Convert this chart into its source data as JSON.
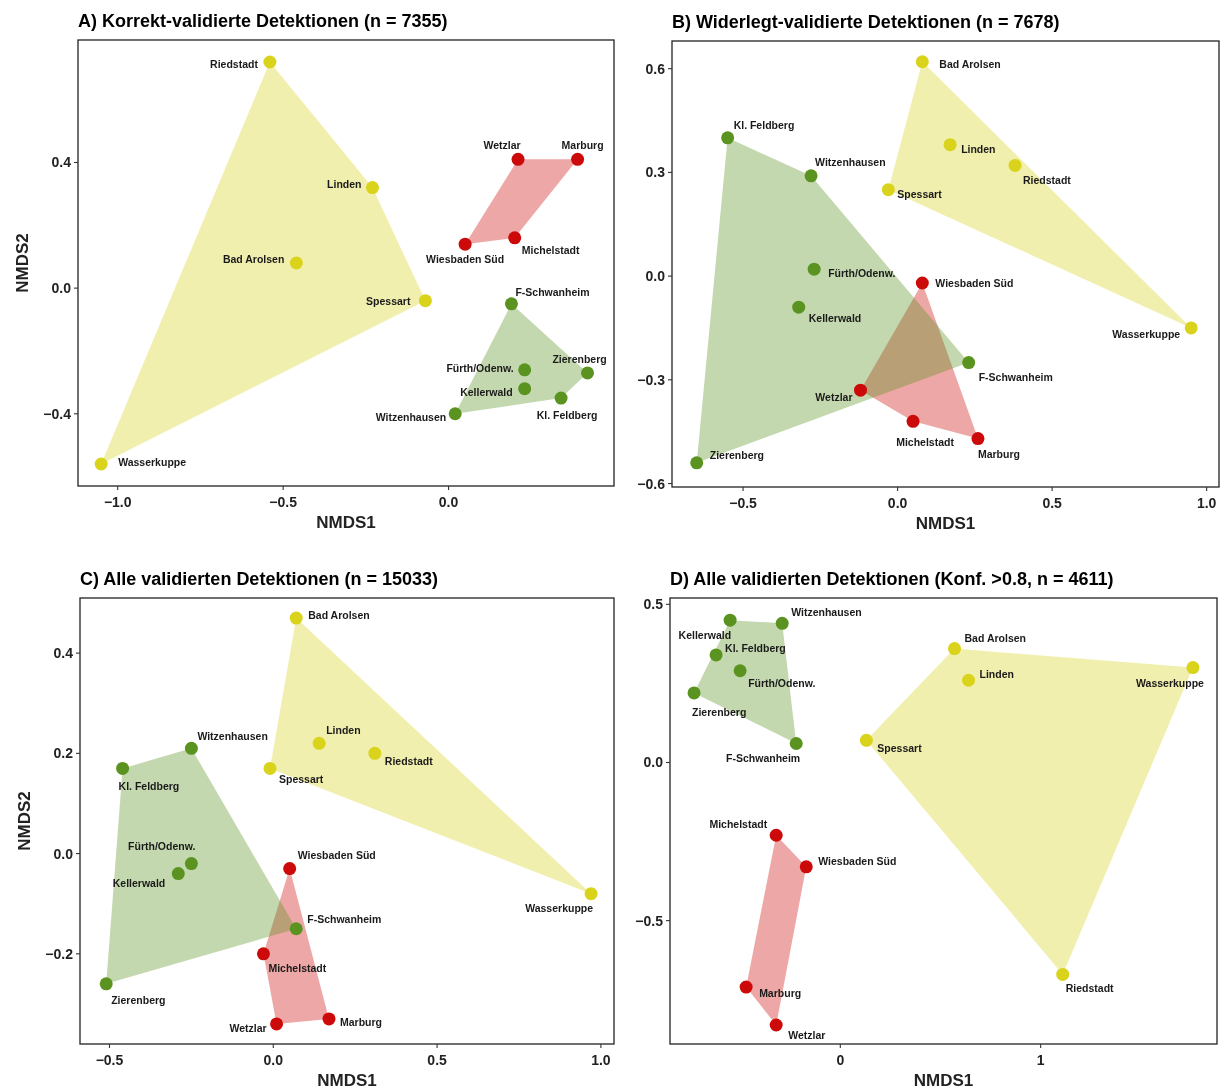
{
  "chart_data": [
    {
      "type": "scatter",
      "title": "A) Korrekt-validierte Detektionen (n = 7355)",
      "xlabel": "NMDS1",
      "ylabel": "NMDS2",
      "marker": "circle",
      "xlim": [
        -1.12,
        0.5
      ],
      "ylim": [
        -0.63,
        0.79
      ],
      "xticks": [
        {
          "value": -1.0,
          "label": "−1.0"
        },
        {
          "value": -0.5,
          "label": "−0.5"
        },
        {
          "value": 0,
          "label": "0.0"
        }
      ],
      "yticks": [
        {
          "value": -0.4,
          "label": "−0.4"
        },
        {
          "value": 0,
          "label": "0.0"
        },
        0.4
      ],
      "series": [
        {
          "type": "scatter",
          "color": "#d9d31c",
          "x": [
            -0.54,
            -0.23,
            -0.46,
            -0.07,
            -1.05
          ],
          "values": [
            0.72,
            0.32,
            0.08,
            -0.04,
            -0.56
          ]
        },
        {
          "type": "scatter",
          "color": "#cc0a0a",
          "x": [
            0.21,
            0.39,
            0.05,
            0.2
          ],
          "values": [
            0.41,
            0.41,
            0.14,
            0.16
          ]
        },
        {
          "type": "scatter",
          "color": "#5b9320",
          "x": [
            0.19,
            0.42,
            0.23,
            0.23,
            0.34,
            0.02
          ],
          "values": [
            -0.05,
            -0.27,
            -0.26,
            -0.32,
            -0.35,
            -0.4
          ]
        }
      ],
      "annotations": [
        {
          "text": "Riedstadt",
          "x": -0.54,
          "y": 0.72
        },
        {
          "text": "Linden",
          "x": -0.23,
          "y": 0.32
        },
        {
          "text": "Bad Arolsen",
          "x": -0.46,
          "y": 0.08
        },
        {
          "text": "Spessart",
          "x": -0.07,
          "y": -0.04
        },
        {
          "text": "Wasserkuppe",
          "x": -1.05,
          "y": -0.56
        },
        {
          "text": "Wetzlar",
          "x": 0.21,
          "y": 0.41
        },
        {
          "text": "Marburg",
          "x": 0.39,
          "y": 0.41
        },
        {
          "text": "Wiesbaden Süd",
          "x": 0.05,
          "y": 0.14
        },
        {
          "text": "Michelstadt",
          "x": 0.2,
          "y": 0.16
        },
        {
          "text": "F-Schwanheim",
          "x": 0.19,
          "y": -0.05
        },
        {
          "text": "Zierenberg",
          "x": 0.42,
          "y": -0.27
        },
        {
          "text": "Fürth/Odenw.",
          "x": 0.23,
          "y": -0.26
        },
        {
          "text": "Kellerwald",
          "x": 0.23,
          "y": -0.32
        },
        {
          "text": "Kl. Feldberg",
          "x": 0.34,
          "y": -0.35
        },
        {
          "text": "Witzenhausen",
          "x": 0.02,
          "y": -0.4
        }
      ]
    },
    {
      "type": "scatter",
      "title": "B) Widerlegt-validierte Detektionen (n = 7678)",
      "xlabel": "NMDS1",
      "marker": "circle",
      "xlim": [
        -0.73,
        1.04
      ],
      "ylim": [
        -0.61,
        0.68
      ],
      "xticks": [
        {
          "value": -0.5,
          "label": "−0.5"
        },
        {
          "value": 0,
          "label": "0.0"
        },
        0.5,
        {
          "value": 1.0,
          "label": "1.0"
        }
      ],
      "yticks": [
        {
          "value": -0.6,
          "label": "−0.6"
        },
        {
          "value": -0.3,
          "label": "−0.3"
        },
        {
          "value": 0,
          "label": "0.0"
        },
        0.3,
        0.6
      ],
      "series": [
        {
          "type": "scatter",
          "color": "#d9d31c",
          "x": [
            0.08,
            0.17,
            0.38,
            -0.03,
            0.95
          ],
          "values": [
            0.62,
            0.38,
            0.32,
            0.25,
            -0.15
          ]
        },
        {
          "type": "scatter",
          "color": "#cc0a0a",
          "x": [
            0.08,
            -0.12,
            0.05,
            0.26
          ],
          "values": [
            -0.02,
            -0.33,
            -0.42,
            -0.47
          ]
        },
        {
          "type": "scatter",
          "color": "#5b9320",
          "x": [
            -0.55,
            -0.28,
            -0.27,
            -0.32,
            0.23,
            -0.65
          ],
          "values": [
            0.4,
            0.29,
            0.02,
            -0.09,
            -0.25,
            -0.54
          ]
        }
      ],
      "annotations": [
        {
          "text": "Bad Arolsen",
          "x": 0.08,
          "y": 0.62
        },
        {
          "text": "Linden",
          "x": 0.17,
          "y": 0.38
        },
        {
          "text": "Riedstadt",
          "x": 0.38,
          "y": 0.32
        },
        {
          "text": "Spessart",
          "x": -0.03,
          "y": 0.25
        },
        {
          "text": "Wasserkuppe",
          "x": 0.95,
          "y": -0.15
        },
        {
          "text": "Wiesbaden Süd",
          "x": 0.08,
          "y": -0.02
        },
        {
          "text": "Wetzlar",
          "x": -0.12,
          "y": -0.33
        },
        {
          "text": "Michelstadt",
          "x": 0.05,
          "y": -0.42
        },
        {
          "text": "Marburg",
          "x": 0.26,
          "y": -0.47
        },
        {
          "text": "Kl. Feldberg",
          "x": -0.55,
          "y": 0.4
        },
        {
          "text": "Witzenhausen",
          "x": -0.28,
          "y": 0.29
        },
        {
          "text": "Fürth/Odenw.",
          "x": -0.27,
          "y": 0.02
        },
        {
          "text": "Kellerwald",
          "x": -0.32,
          "y": -0.09
        },
        {
          "text": "F-Schwanheim",
          "x": 0.23,
          "y": -0.25
        },
        {
          "text": "Zierenberg",
          "x": -0.65,
          "y": -0.54
        }
      ]
    },
    {
      "type": "scatter",
      "title": "C) Alle validierten Detektionen (n = 15033)",
      "xlabel": "NMDS1",
      "ylabel": "NMDS2",
      "marker": "circle",
      "xlim": [
        -0.59,
        1.04
      ],
      "ylim": [
        -0.38,
        0.51
      ],
      "xticks": [
        {
          "value": -0.5,
          "label": "−0.5"
        },
        {
          "value": 0,
          "label": "0.0"
        },
        0.5,
        {
          "value": 1.0,
          "label": "1.0"
        }
      ],
      "yticks": [
        {
          "value": -0.2,
          "label": "−0.2"
        },
        {
          "value": 0,
          "label": "0.0"
        },
        0.2,
        0.4
      ],
      "series": [
        {
          "type": "scatter",
          "color": "#d9d31c",
          "x": [
            0.07,
            0.14,
            0.31,
            -0.01,
            0.97
          ],
          "values": [
            0.47,
            0.22,
            0.2,
            0.17,
            -0.08
          ]
        },
        {
          "type": "scatter",
          "color": "#cc0a0a",
          "x": [
            0.05,
            -0.03,
            0.01,
            0.17
          ],
          "values": [
            -0.03,
            -0.2,
            -0.34,
            -0.33
          ]
        },
        {
          "type": "scatter",
          "color": "#5b9320",
          "x": [
            -0.25,
            -0.46,
            -0.25,
            -0.29,
            0.07,
            -0.51
          ],
          "values": [
            0.21,
            0.17,
            -0.02,
            -0.04,
            -0.15,
            -0.26
          ]
        }
      ],
      "annotations": [
        {
          "text": "Bad Arolsen",
          "x": 0.07,
          "y": 0.47
        },
        {
          "text": "Linden",
          "x": 0.14,
          "y": 0.22
        },
        {
          "text": "Riedstadt",
          "x": 0.31,
          "y": 0.2
        },
        {
          "text": "Spessart",
          "x": -0.01,
          "y": 0.17
        },
        {
          "text": "Wasserkuppe",
          "x": 0.97,
          "y": -0.08
        },
        {
          "text": "Wiesbaden Süd",
          "x": 0.05,
          "y": -0.03
        },
        {
          "text": "Michelstadt",
          "x": -0.03,
          "y": -0.2
        },
        {
          "text": "Wetzlar",
          "x": 0.01,
          "y": -0.34
        },
        {
          "text": "Marburg",
          "x": 0.17,
          "y": -0.33
        },
        {
          "text": "Witzenhausen",
          "x": -0.25,
          "y": 0.21
        },
        {
          "text": "Kl. Feldberg",
          "x": -0.46,
          "y": 0.17
        },
        {
          "text": "Fürth/Odenw.",
          "x": -0.25,
          "y": -0.02
        },
        {
          "text": "Kellerwald",
          "x": -0.29,
          "y": -0.04
        },
        {
          "text": "F-Schwanheim",
          "x": 0.07,
          "y": -0.15
        },
        {
          "text": "Zierenberg",
          "x": -0.51,
          "y": -0.26
        }
      ]
    },
    {
      "type": "scatter",
      "title": "D) Alle validierten Detektionen (Konf. >0.8, n = 4611)",
      "xlabel": "NMDS1",
      "marker": "circle",
      "xlim": [
        -0.85,
        1.88
      ],
      "ylim": [
        -0.89,
        0.52
      ],
      "xticks": [
        0,
        1
      ],
      "yticks": [
        {
          "value": -0.5,
          "label": "−0.5"
        },
        {
          "value": 0,
          "label": "0.0"
        },
        0.5
      ],
      "series": [
        {
          "type": "scatter",
          "color": "#d9d31c",
          "x": [
            0.57,
            0.64,
            1.76,
            0.13,
            1.11
          ],
          "values": [
            0.36,
            0.26,
            0.3,
            0.07,
            -0.67
          ]
        },
        {
          "type": "scatter",
          "color": "#cc0a0a",
          "x": [
            -0.32,
            -0.17,
            -0.47,
            -0.32
          ],
          "values": [
            -0.23,
            -0.33,
            -0.71,
            -0.83
          ]
        },
        {
          "type": "scatter",
          "color": "#5b9320",
          "x": [
            -0.55,
            -0.29,
            -0.62,
            -0.5,
            -0.73,
            -0.22
          ],
          "values": [
            0.45,
            0.44,
            0.34,
            0.29,
            0.22,
            0.06
          ]
        }
      ],
      "annotations": [
        {
          "text": "Bad Arolsen",
          "x": 0.57,
          "y": 0.36
        },
        {
          "text": "Linden",
          "x": 0.64,
          "y": 0.26
        },
        {
          "text": "Wasserkuppe",
          "x": 1.76,
          "y": 0.3
        },
        {
          "text": "Spessart",
          "x": 0.13,
          "y": 0.07
        },
        {
          "text": "Riedstadt",
          "x": 1.11,
          "y": -0.67
        },
        {
          "text": "Michelstadt",
          "x": -0.32,
          "y": -0.23
        },
        {
          "text": "Wiesbaden Süd",
          "x": -0.17,
          "y": -0.33
        },
        {
          "text": "Marburg",
          "x": -0.47,
          "y": -0.71
        },
        {
          "text": "Wetzlar",
          "x": -0.32,
          "y": -0.83
        },
        {
          "text": "Kellerwald",
          "x": -0.55,
          "y": 0.45
        },
        {
          "text": "Witzenhausen",
          "x": -0.29,
          "y": 0.44
        },
        {
          "text": "Kl. Feldberg",
          "x": -0.62,
          "y": 0.34
        },
        {
          "text": "Fürth/Odenw.",
          "x": -0.5,
          "y": 0.29
        },
        {
          "text": "Zierenberg",
          "x": -0.73,
          "y": 0.22
        },
        {
          "text": "F-Schwanheim",
          "x": -0.22,
          "y": 0.06
        }
      ]
    }
  ]
}
